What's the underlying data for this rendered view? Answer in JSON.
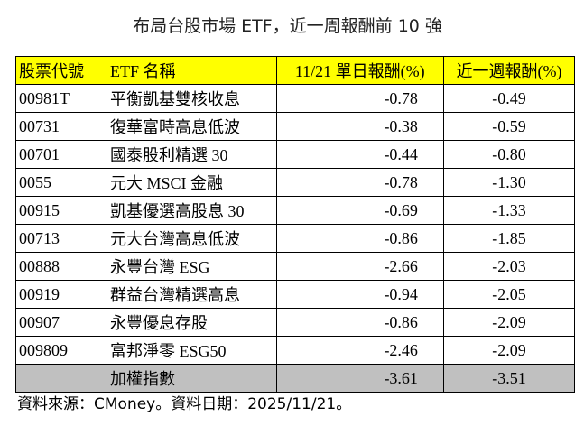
{
  "header": {
    "title": "布局台股市場 ETF，近一周報酬前 10 強"
  },
  "table": {
    "columns": [
      "股票代號",
      "ETF 名稱",
      "11/21 單日報酬(%)",
      "近一週報酬(%)"
    ],
    "rows": [
      [
        "00981T",
        "平衡凱基雙核收息",
        "-0.78",
        "-0.49"
      ],
      [
        "00731",
        "復華富時高息低波",
        "-0.38",
        "-0.59"
      ],
      [
        "00701",
        "國泰股利精選 30",
        "-0.44",
        "-0.80"
      ],
      [
        "0055",
        "元大 MSCI 金融",
        "-0.78",
        "-1.30"
      ],
      [
        "00915",
        "凱基優選高股息 30",
        "-0.69",
        "-1.33"
      ],
      [
        "00713",
        "元大台灣高息低波",
        "-0.86",
        "-1.85"
      ],
      [
        "00888",
        "永豐台灣 ESG",
        "-2.66",
        "-2.03"
      ],
      [
        "00919",
        "群益台灣精選高息",
        "-0.94",
        "-2.05"
      ],
      [
        "00907",
        "永豐優息存股",
        "-0.86",
        "-2.09"
      ],
      [
        "009809",
        "富邦淨零 ESG50",
        "-2.46",
        "-2.09"
      ]
    ],
    "index_row": {
      "name": "加權指數",
      "daily": "-3.61",
      "weekly": "-3.51"
    }
  },
  "footer": {
    "source": "資料來源：CMoney。資料日期：2025/11/21。"
  }
}
